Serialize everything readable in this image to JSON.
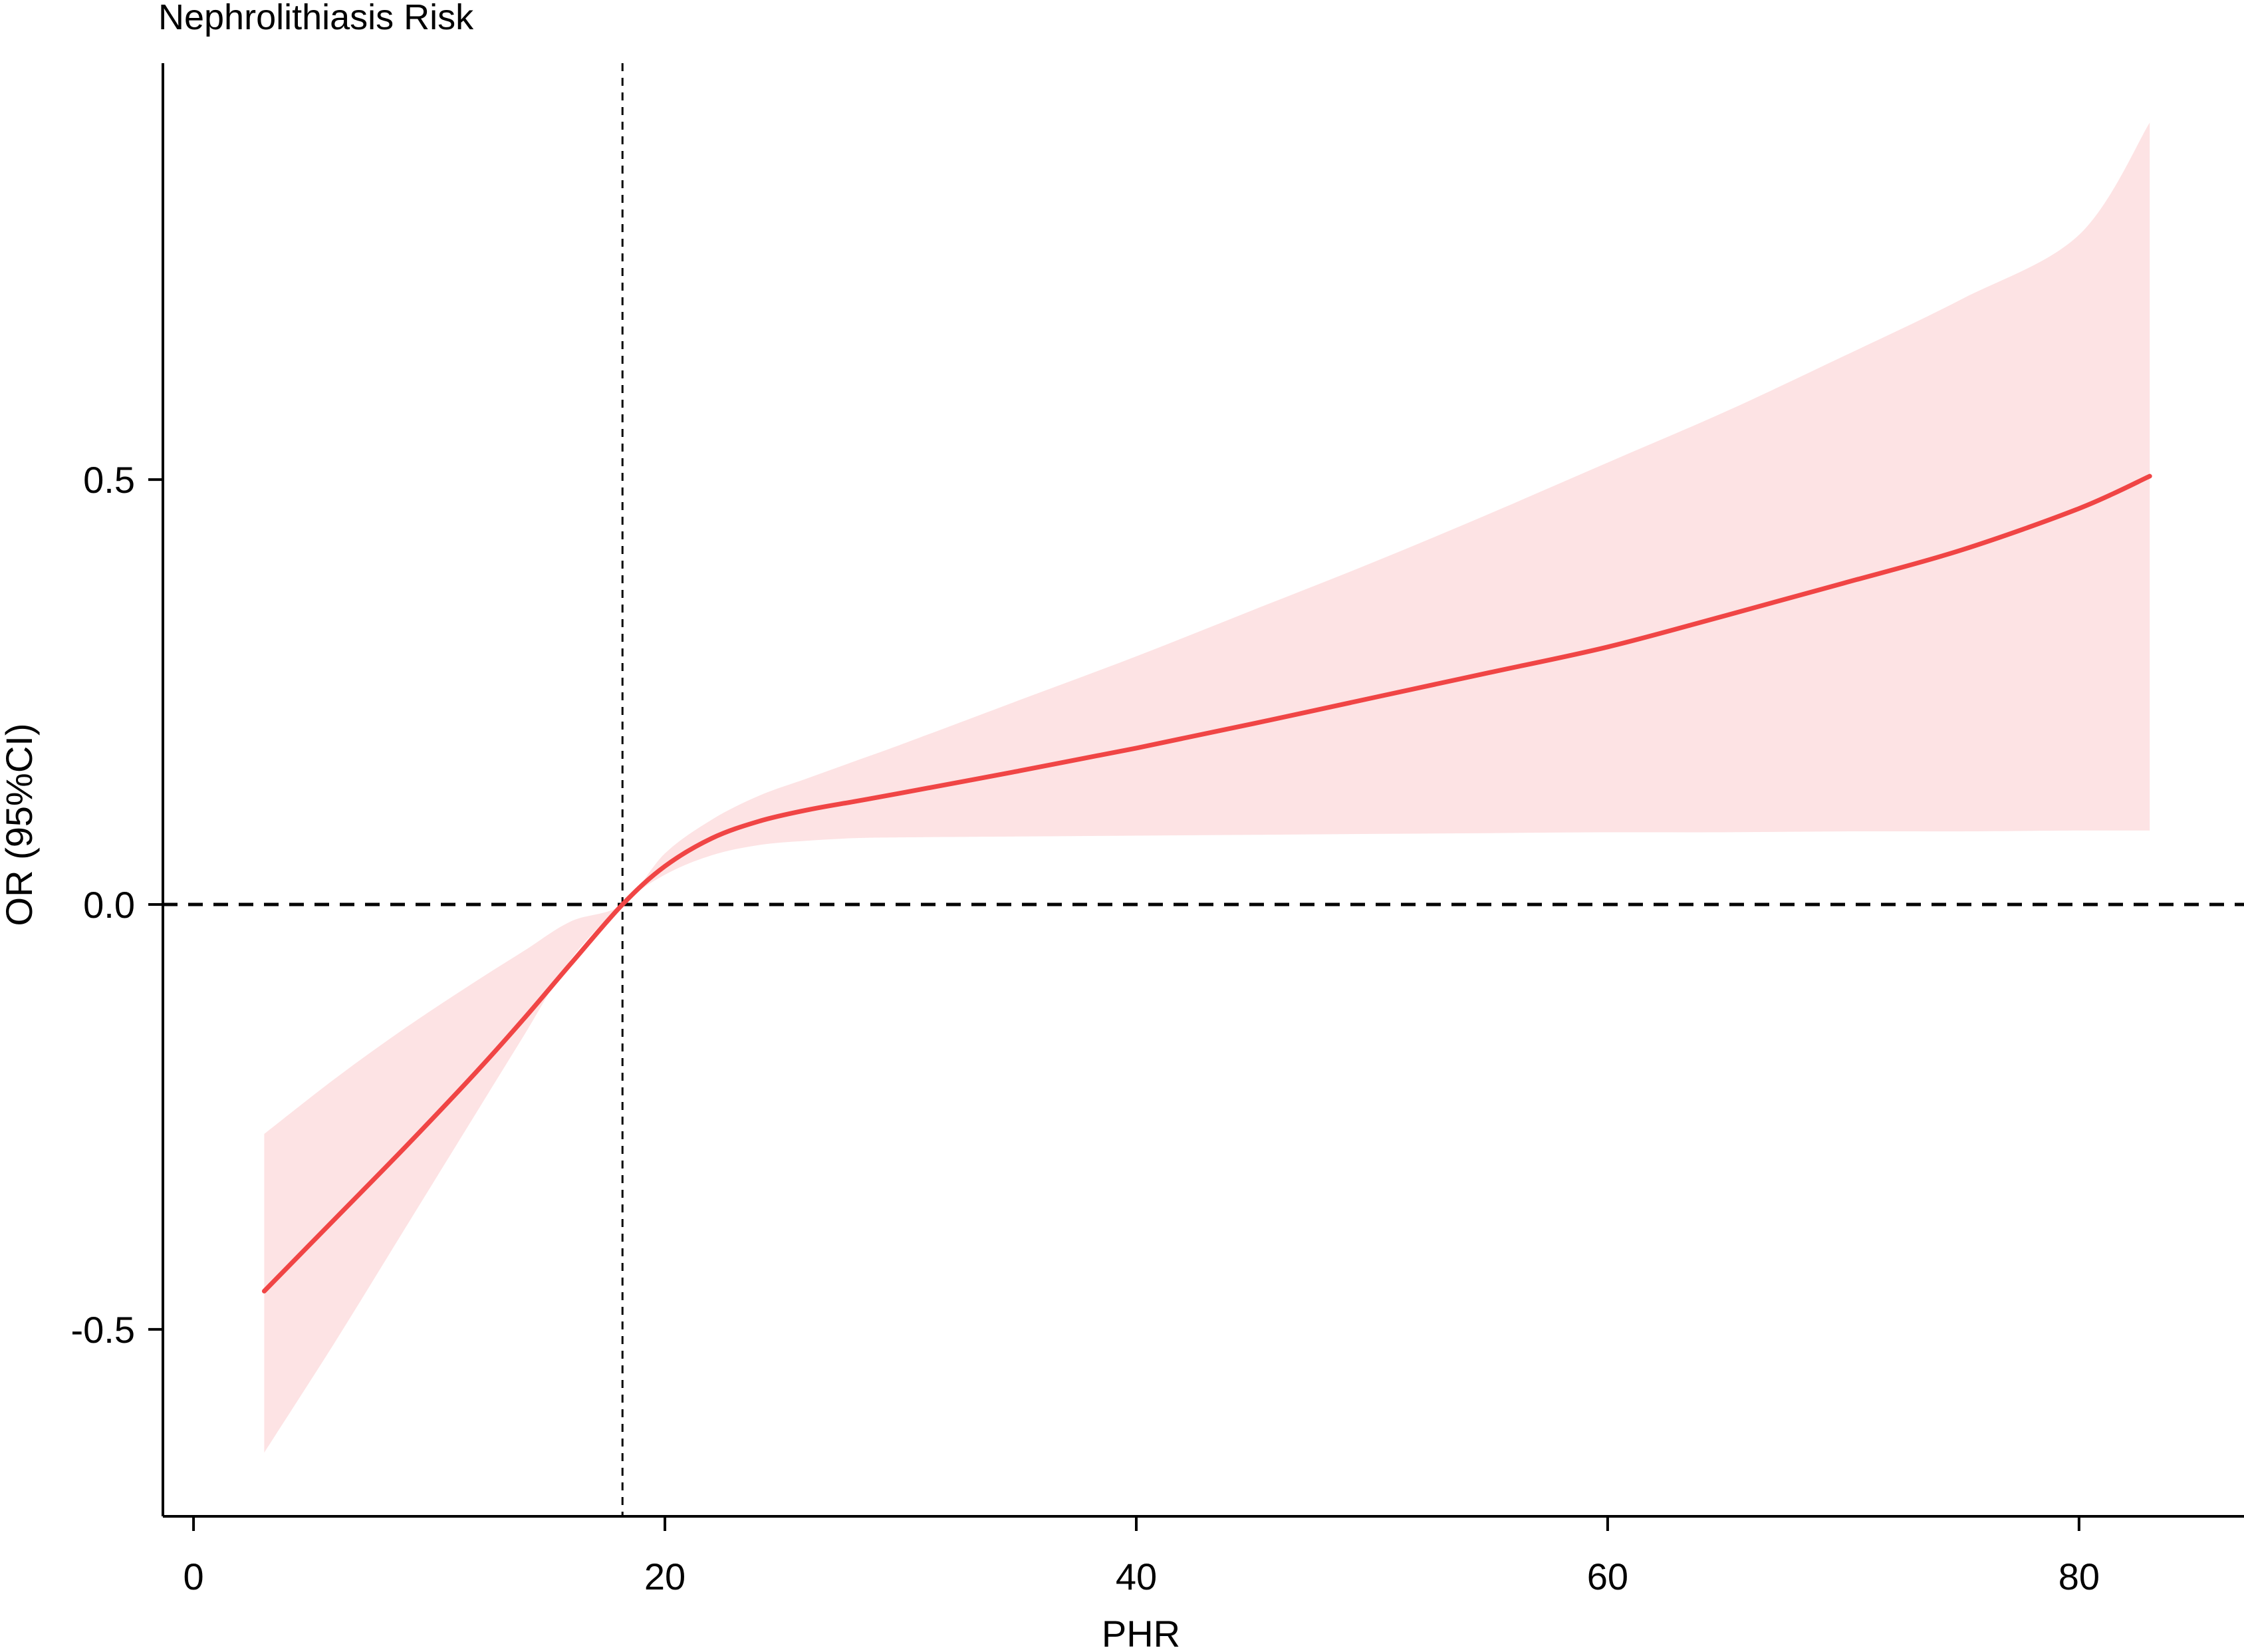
{
  "chart_data": {
    "type": "line",
    "title": "Nephrolithiasis Risk",
    "xlabel": "PHR",
    "ylabel": "OR (95%CI)",
    "xlim": [
      -1.3,
      87
    ],
    "ylim": [
      -0.72,
      0.99
    ],
    "x_ticks": [
      0,
      20,
      40,
      60,
      80
    ],
    "x_tick_labels": [
      "0",
      "20",
      "40",
      "60",
      "80"
    ],
    "y_ticks": [
      -0.5,
      0.0,
      0.5
    ],
    "y_tick_labels": [
      "-0.5",
      "0.0",
      "0.5"
    ],
    "reference_lines": {
      "vertical_x": 18.2,
      "horizontal_y": 0.0
    },
    "colors": {
      "line": "#f04545",
      "ci_band": "#fde3e4",
      "axis": "#000000"
    },
    "grid": false,
    "series": [
      {
        "x": [
          3,
          6,
          9,
          12,
          14,
          16,
          18.2,
          20,
          22,
          24,
          26,
          28,
          30,
          35,
          40,
          45,
          50,
          55,
          60,
          65,
          70,
          75,
          80,
          83
        ],
        "y": [
          -0.455,
          -0.37,
          -0.285,
          -0.197,
          -0.135,
          -0.07,
          0.0,
          0.045,
          0.078,
          0.098,
          0.111,
          0.121,
          0.131,
          0.157,
          0.184,
          0.213,
          0.243,
          0.273,
          0.303,
          0.34,
          0.378,
          0.417,
          0.466,
          0.504
        ],
        "lower": [
          -0.645,
          -0.515,
          -0.38,
          -0.245,
          -0.155,
          -0.065,
          0.0,
          0.035,
          0.058,
          0.07,
          0.075,
          0.078,
          0.079,
          0.08,
          0.081,
          0.082,
          0.083,
          0.084,
          0.085,
          0.085,
          0.086,
          0.086,
          0.087,
          0.087
        ],
        "upper": [
          -0.27,
          -0.205,
          -0.145,
          -0.09,
          -0.055,
          -0.02,
          0.0,
          0.06,
          0.1,
          0.128,
          0.148,
          0.168,
          0.188,
          0.24,
          0.292,
          0.347,
          0.402,
          0.46,
          0.52,
          0.58,
          0.645,
          0.712,
          0.788,
          0.92
        ]
      }
    ]
  }
}
